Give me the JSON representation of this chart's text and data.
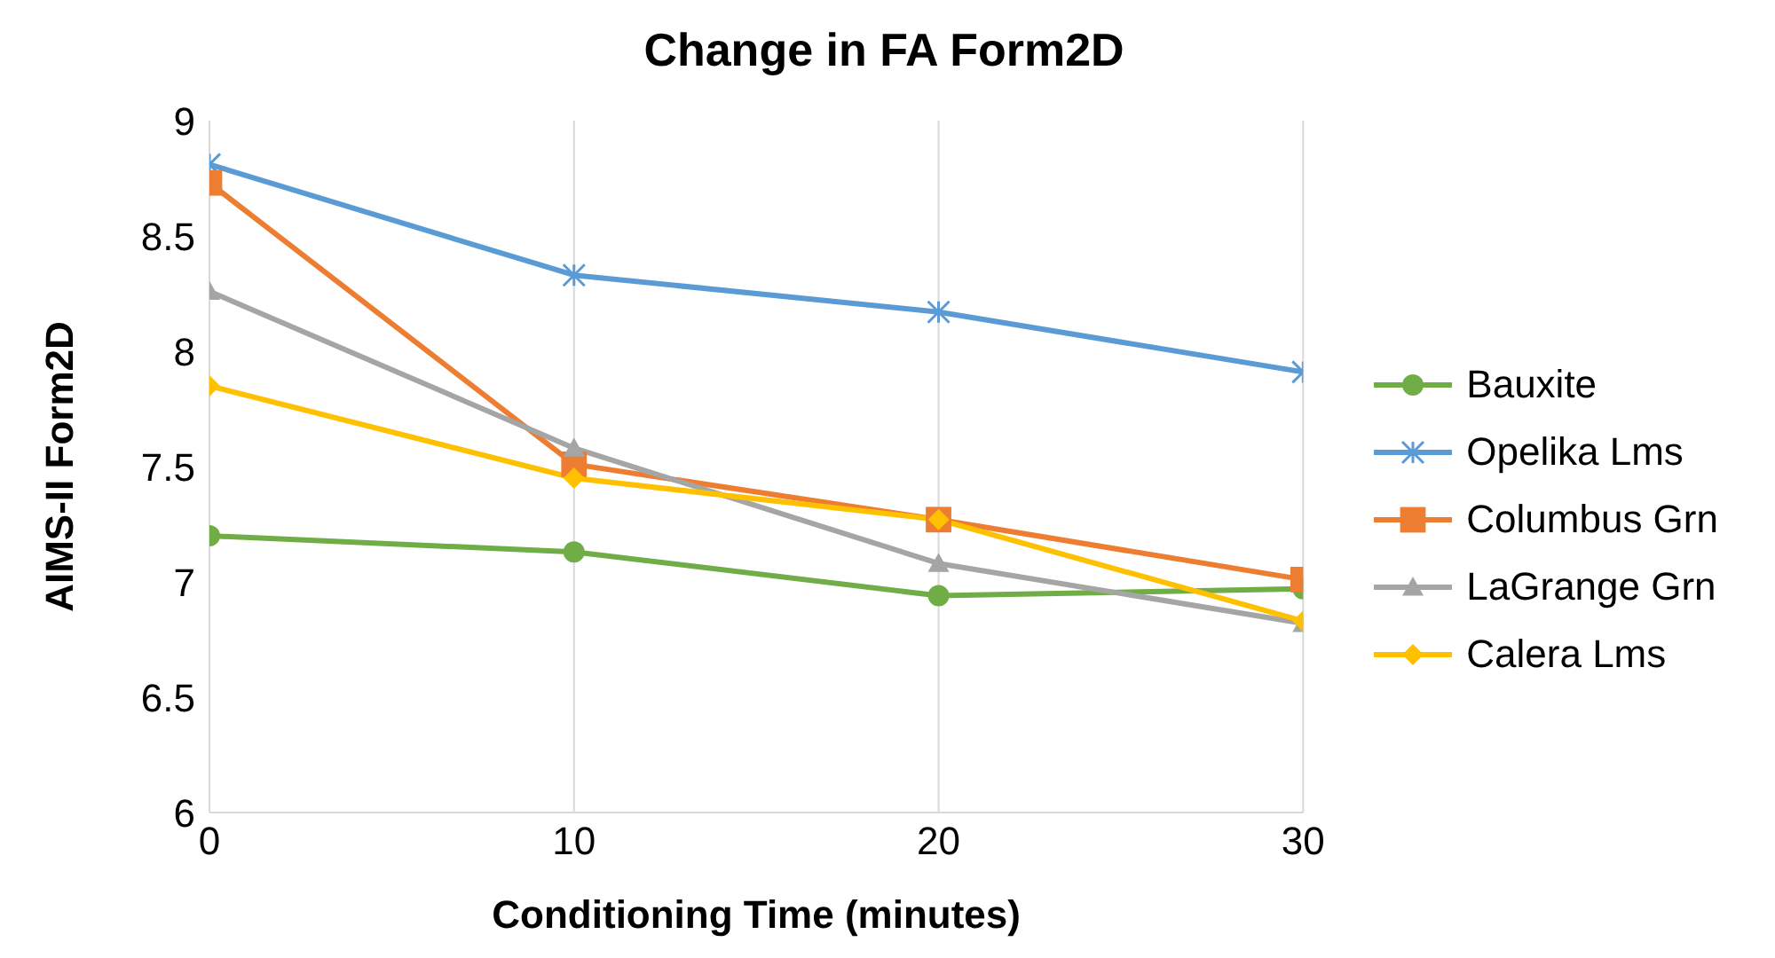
{
  "chart_data": {
    "type": "line",
    "title": "Change in FA Form2D",
    "xlabel": "Conditioning Time (minutes)",
    "ylabel": "AIMS-II Form2D",
    "x": [
      0,
      10,
      20,
      30
    ],
    "series": [
      {
        "name": "Bauxite",
        "color": "#70ad47",
        "marker": "circle",
        "values": [
          7.2,
          7.13,
          6.94,
          6.97
        ]
      },
      {
        "name": "Opelika Lms",
        "color": "#5b9bd5",
        "marker": "cross",
        "values": [
          8.81,
          8.33,
          8.17,
          7.91
        ]
      },
      {
        "name": "Columbus Grn",
        "color": "#ed7d31",
        "marker": "square",
        "values": [
          8.73,
          7.51,
          7.27,
          7.01
        ]
      },
      {
        "name": "LaGrange Grn",
        "color": "#a5a5a5",
        "marker": "triangle",
        "values": [
          8.26,
          7.58,
          7.08,
          6.82
        ]
      },
      {
        "name": "Calera Lms",
        "color": "#ffc000",
        "marker": "diamond",
        "values": [
          7.85,
          7.45,
          7.27,
          6.83
        ]
      }
    ],
    "xlim": [
      0,
      30
    ],
    "xticks": [
      0,
      10,
      20,
      30
    ],
    "ylim": [
      6,
      9
    ],
    "yticks": [
      6,
      6.5,
      7,
      7.5,
      8,
      8.5,
      9
    ],
    "grid": "x",
    "legend": "right",
    "line_style": "solid"
  }
}
